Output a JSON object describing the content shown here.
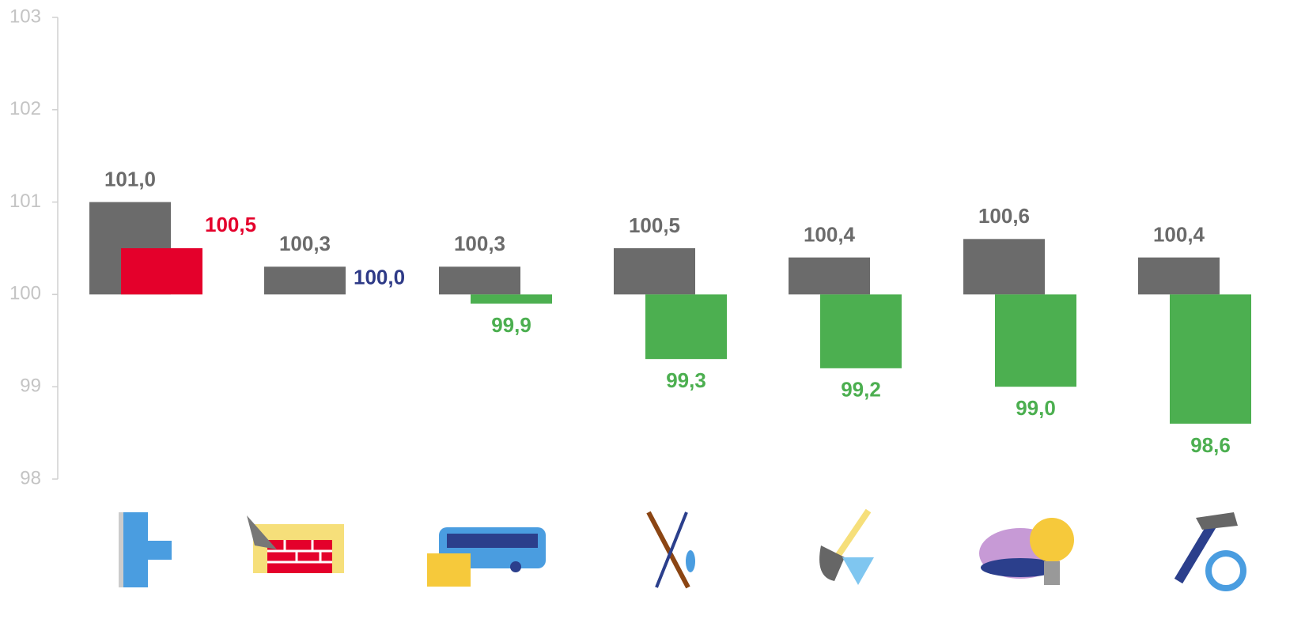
{
  "chart_data": {
    "type": "bar",
    "categories": [
      null,
      null,
      null,
      null,
      null,
      null,
      null
    ],
    "series": [
      {
        "color": "#6b6b6b",
        "label_color": "#6b6b6b",
        "values": [
          101.0,
          100.3,
          100.3,
          100.5,
          100.4,
          100.6,
          100.4
        ],
        "value_labels": [
          "101,0",
          "100,3",
          "100,3",
          "100,5",
          "100,4",
          "100,6",
          "100,4"
        ]
      },
      {
        "colors": [
          "#e4002b",
          "#2e3a87",
          "#4caf50",
          "#4caf50",
          "#4caf50",
          "#4caf50",
          "#4caf50"
        ],
        "values": [
          100.5,
          100.0,
          99.9,
          99.3,
          99.2,
          99.0,
          98.6
        ],
        "value_labels": [
          "100,5",
          "100,0",
          "99,9",
          "99,3",
          "99,2",
          "99,0",
          "98,6"
        ]
      }
    ],
    "baseline": 100,
    "ylim": [
      98,
      103
    ],
    "yticks": [
      98,
      99,
      100,
      101,
      102,
      103
    ]
  }
}
